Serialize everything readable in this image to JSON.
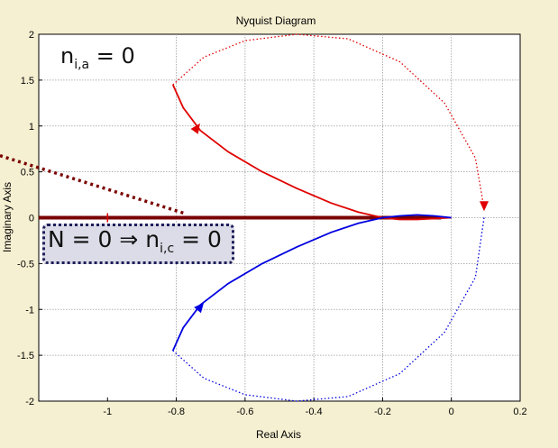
{
  "chart_data": {
    "type": "line",
    "title": "Nyquist Diagram",
    "xlabel": "Real Axis",
    "ylabel": "Imaginary Axis",
    "xlim": [
      -1.2,
      0.2
    ],
    "ylim": [
      -2,
      2
    ],
    "xticks": [
      "-1",
      "-0.8",
      "-0.6",
      "-0.4",
      "-0.2",
      "0",
      "0.2"
    ],
    "xtick_values": [
      -1,
      -0.8,
      -0.6,
      -0.4,
      -0.2,
      0,
      0.2
    ],
    "yticks": [
      "2",
      "1.5",
      "1",
      "0.5",
      "0",
      "-0.5",
      "-1",
      "-1.5",
      "-2"
    ],
    "ytick_values": [
      2,
      1.5,
      1,
      0.5,
      0,
      -0.5,
      -1,
      -1.5,
      -2
    ],
    "grid": true,
    "critical_point": [
      -1,
      0
    ],
    "series": [
      {
        "color": "#e00000",
        "style": "solid",
        "x": [
          -0.81,
          -0.78,
          -0.73,
          -0.65,
          -0.55,
          -0.45,
          -0.35,
          -0.27,
          -0.2,
          -0.15,
          -0.1,
          -0.05,
          0
        ],
        "y": [
          1.45,
          1.2,
          0.95,
          0.72,
          0.5,
          0.32,
          0.16,
          0.06,
          0,
          -0.02,
          -0.02,
          -0.01,
          0
        ]
      },
      {
        "color": "#e00000",
        "style": "dotted",
        "x": [
          -0.81,
          -0.72,
          -0.6,
          -0.45,
          -0.3,
          -0.15,
          -0.02,
          0.07,
          0.095
        ],
        "y": [
          1.45,
          1.75,
          1.93,
          2.0,
          1.95,
          1.7,
          1.25,
          0.65,
          0.1
        ]
      },
      {
        "color": "#0000e0",
        "style": "solid",
        "x": [
          -0.81,
          -0.78,
          -0.73,
          -0.65,
          -0.55,
          -0.45,
          -0.35,
          -0.27,
          -0.2,
          -0.15,
          -0.1,
          -0.05,
          0
        ],
        "y": [
          -1.45,
          -1.2,
          -0.95,
          -0.72,
          -0.5,
          -0.32,
          -0.16,
          -0.06,
          0,
          0.02,
          0.03,
          0.02,
          0
        ]
      },
      {
        "color": "#0000e0",
        "style": "dotted",
        "x": [
          0.095,
          0.07,
          -0.02,
          -0.15,
          -0.3,
          -0.45,
          -0.6,
          -0.72,
          -0.81
        ],
        "y": [
          0,
          -0.65,
          -1.25,
          -1.7,
          -1.95,
          -2.0,
          -1.93,
          -1.75,
          -1.45
        ]
      }
    ],
    "arrows": [
      {
        "color": "#e00000",
        "x": -0.74,
        "y": 0.98,
        "angle": -55
      },
      {
        "color": "#e00000",
        "x": 0.095,
        "y": 0.13,
        "angle": 90
      },
      {
        "color": "#0000e0",
        "x": -0.73,
        "y": -0.97,
        "angle": -50
      }
    ],
    "thick_line": {
      "color": "#7a0000",
      "x": [
        -1.2,
        -0.03
      ],
      "y": [
        0,
        0
      ]
    },
    "dotted_line": {
      "color": "#7a0000",
      "x": [
        -1.35,
        -0.77
      ],
      "y": [
        0.72,
        0.04
      ]
    }
  },
  "annotations": {
    "nia": {
      "base": "n",
      "sub": "i,a",
      "rest": " = 0"
    },
    "nic": {
      "base": "N = 0 ⇒ n",
      "sub": "i,c",
      "rest": " = 0"
    }
  }
}
